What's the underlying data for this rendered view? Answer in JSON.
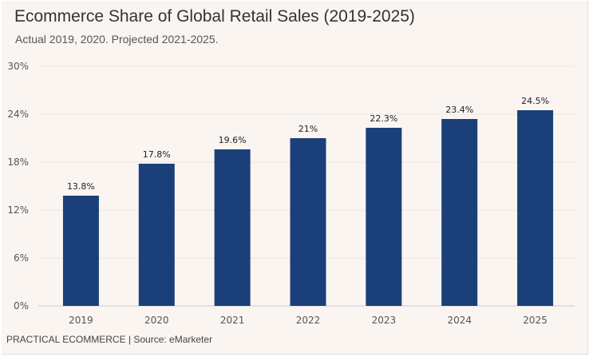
{
  "chart_data": {
    "type": "bar",
    "title": "Ecommerce Share of Global Retail Sales (2019-2025)",
    "subtitle": "Actual 2019, 2020. Projected 2021-2025.",
    "categories": [
      "2019",
      "2020",
      "2021",
      "2022",
      "2023",
      "2024",
      "2025"
    ],
    "values": [
      13.8,
      17.8,
      19.6,
      21,
      22.3,
      23.4,
      24.5
    ],
    "data_labels": [
      "13.8%",
      "17.8%",
      "19.6%",
      "21%",
      "22.3%",
      "23.4%",
      "24.5%"
    ],
    "ylim": [
      0,
      30
    ],
    "yticks": [
      0,
      6,
      12,
      18,
      24,
      30
    ],
    "ytick_labels": [
      "0%",
      "6%",
      "12%",
      "18%",
      "24%",
      "30%"
    ],
    "xlabel": "",
    "ylabel": "",
    "grid": true,
    "legend": "none",
    "bar_color": "#1b4079"
  },
  "footer": "PRACTICAL ECOMMERCE | Source: eMarketer"
}
